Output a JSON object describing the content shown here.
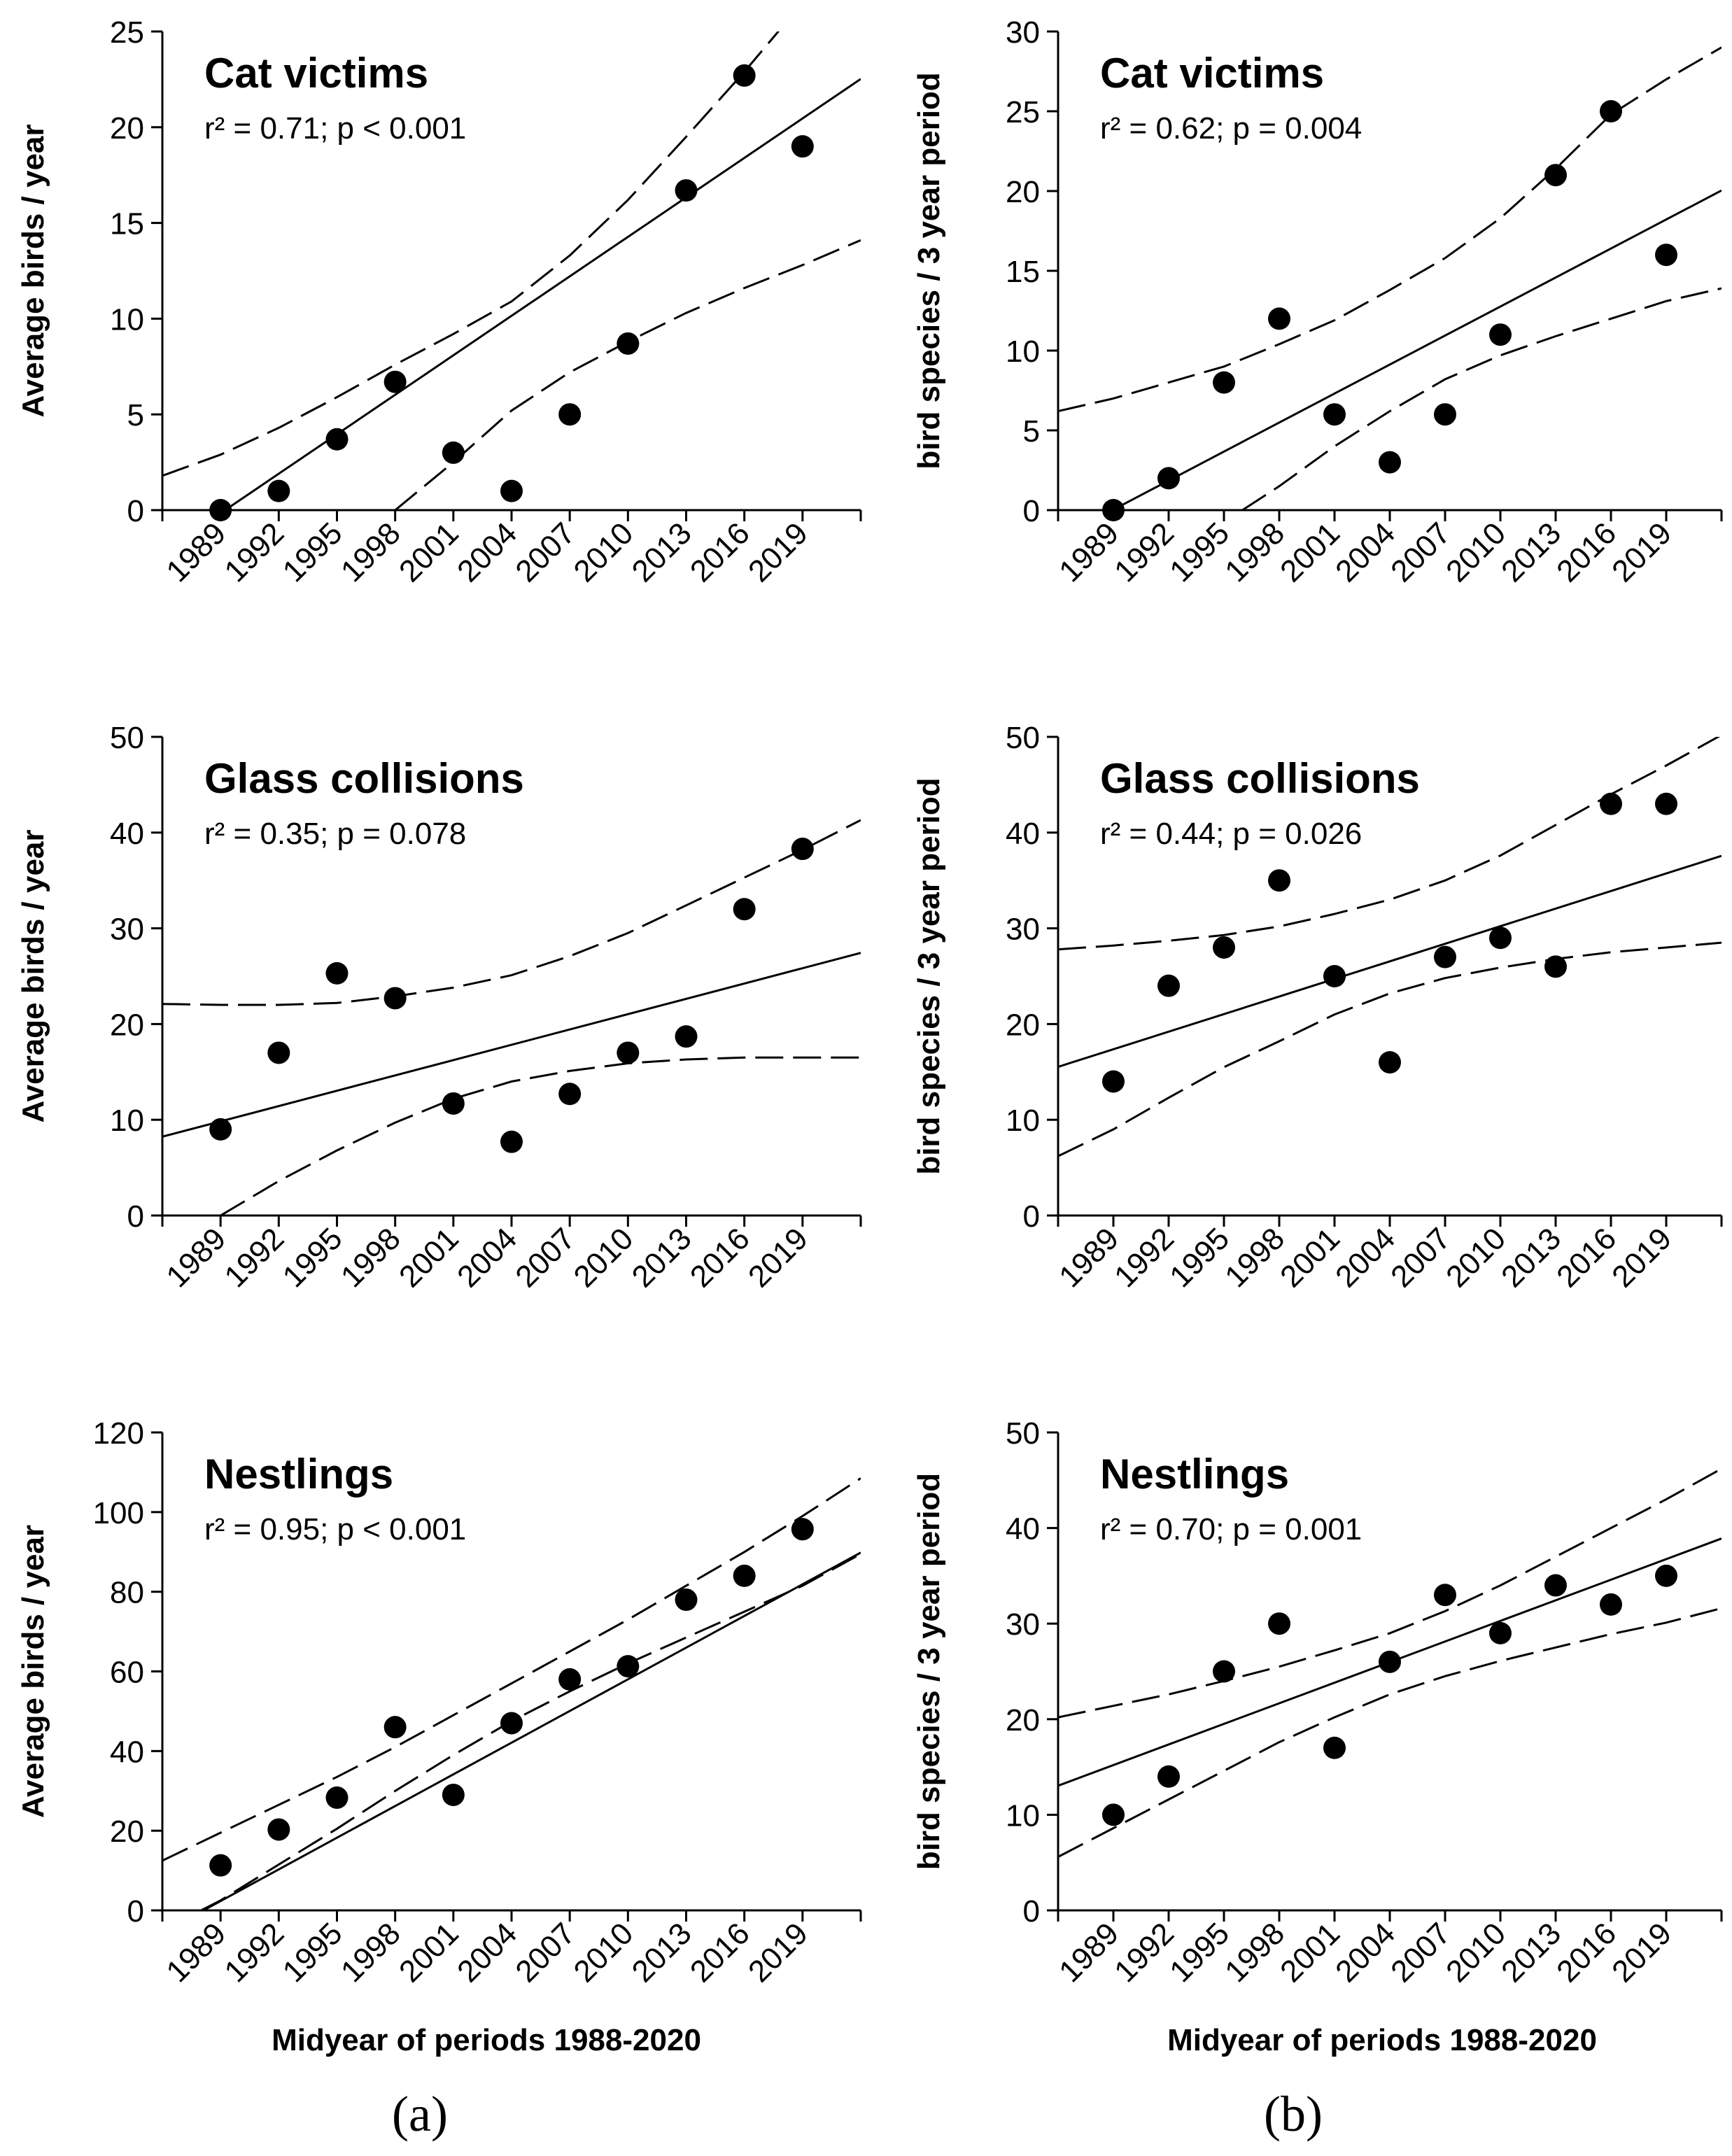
{
  "figure": {
    "panel_labels": [
      "(a)",
      "(b)"
    ],
    "x_axis_label": "Midyear of periods 1988-2020"
  },
  "chart_data": [
    {
      "type": "scatter",
      "title": "Cat victims",
      "stats": "r² = 0.71; p < 0.001",
      "ylabel": "Average birds / year",
      "xlabel": "",
      "categories": [
        "1989",
        "1992",
        "1995",
        "1998",
        "2001",
        "2004",
        "2007",
        "2010",
        "2013",
        "2016",
        "2019"
      ],
      "x": [
        1989,
        1992,
        1995,
        1998,
        2001,
        2004,
        2007,
        2010,
        2013,
        2016,
        2019
      ],
      "values": [
        0,
        1,
        3.7,
        6.7,
        3,
        1,
        5,
        8.7,
        16.7,
        22.7,
        19
      ],
      "fit": {
        "slope": 0.6873,
        "intercept": -1367.2
      },
      "band_lower": [
        [
          1998,
          0
        ],
        [
          2001,
          2.5
        ],
        [
          2004,
          5.2
        ],
        [
          2007,
          7.2
        ],
        [
          2010,
          8.8
        ],
        [
          2013,
          10.3
        ],
        [
          2016,
          11.6
        ],
        [
          2019,
          12.8
        ],
        [
          2022,
          14.1
        ]
      ],
      "band_upper": [
        [
          1986,
          1.8
        ],
        [
          1989,
          2.9
        ],
        [
          1992,
          4.3
        ],
        [
          1995,
          5.9
        ],
        [
          1998,
          7.6
        ],
        [
          2001,
          9.2
        ],
        [
          2004,
          10.9
        ],
        [
          2007,
          13.3
        ],
        [
          2010,
          16.2
        ],
        [
          2013,
          19.5
        ],
        [
          2016,
          22.9
        ],
        [
          2019,
          26.5
        ],
        [
          2022,
          29
        ]
      ],
      "ylim": [
        0,
        25
      ],
      "yticks": [
        0,
        5,
        10,
        15,
        20,
        25
      ],
      "xlim": [
        1986,
        2022
      ],
      "grid": false
    },
    {
      "type": "scatter",
      "title": "Cat victims",
      "stats": "r² = 0.62; p = 0.004",
      "ylabel": "bird species / 3 year period",
      "xlabel": "",
      "categories": [
        "1989",
        "1992",
        "1995",
        "1998",
        "2001",
        "2004",
        "2007",
        "2010",
        "2013",
        "2016",
        "2019"
      ],
      "x": [
        1989,
        1992,
        1995,
        1998,
        2001,
        2004,
        2007,
        2010,
        2013,
        2016,
        2019
      ],
      "values": [
        0,
        2,
        8,
        12,
        6,
        3,
        6,
        11,
        21,
        25,
        16
      ],
      "fit": {
        "slope": 0.6061,
        "intercept": -1205.5
      },
      "band_lower": [
        [
          1996,
          0
        ],
        [
          1998,
          1.5
        ],
        [
          2001,
          4.0
        ],
        [
          2004,
          6.2
        ],
        [
          2007,
          8.2
        ],
        [
          2010,
          9.7
        ],
        [
          2013,
          10.9
        ],
        [
          2016,
          12.0
        ],
        [
          2019,
          13.1
        ],
        [
          2022,
          13.9
        ]
      ],
      "band_upper": [
        [
          1986,
          6.2
        ],
        [
          1989,
          7.0
        ],
        [
          1992,
          8.0
        ],
        [
          1995,
          9.0
        ],
        [
          1998,
          10.4
        ],
        [
          2001,
          11.9
        ],
        [
          2004,
          13.8
        ],
        [
          2007,
          15.8
        ],
        [
          2010,
          18.3
        ],
        [
          2013,
          21.4
        ],
        [
          2016,
          24.8
        ],
        [
          2019,
          27.0
        ],
        [
          2022,
          29
        ]
      ],
      "ylim": [
        0,
        30
      ],
      "yticks": [
        0,
        5,
        10,
        15,
        20,
        25,
        30
      ],
      "xlim": [
        1986,
        2022
      ],
      "grid": false
    },
    {
      "type": "scatter",
      "title": "Glass collisions",
      "stats": "r² = 0.35; p = 0.078",
      "ylabel": "Average birds / year",
      "xlabel": "",
      "categories": [
        "1989",
        "1992",
        "1995",
        "1998",
        "2001",
        "2004",
        "2007",
        "2010",
        "2013",
        "2016",
        "2019"
      ],
      "x": [
        1989,
        1992,
        1995,
        1998,
        2001,
        2004,
        2007,
        2010,
        2013,
        2016,
        2019
      ],
      "values": [
        9,
        17,
        25.3,
        22.7,
        11.7,
        7.7,
        12.7,
        17,
        18.7,
        32,
        38.3
      ],
      "fit": {
        "slope": 0.5333,
        "intercept": -1050.9
      },
      "band_lower": [
        [
          1989,
          0
        ],
        [
          1992,
          3.6
        ],
        [
          1995,
          6.8
        ],
        [
          1998,
          9.7
        ],
        [
          2001,
          12.2
        ],
        [
          2004,
          14.0
        ],
        [
          2007,
          15.1
        ],
        [
          2010,
          15.9
        ],
        [
          2013,
          16.3
        ],
        [
          2016,
          16.5
        ],
        [
          2019,
          16.5
        ],
        [
          2022,
          16.5
        ]
      ],
      "band_upper": [
        [
          1986,
          22.1
        ],
        [
          1989,
          22
        ],
        [
          1992,
          22
        ],
        [
          1995,
          22.2
        ],
        [
          1998,
          22.9
        ],
        [
          2001,
          23.8
        ],
        [
          2004,
          25.1
        ],
        [
          2007,
          27.1
        ],
        [
          2010,
          29.5
        ],
        [
          2013,
          32.4
        ],
        [
          2016,
          35.3
        ],
        [
          2019,
          38.2
        ],
        [
          2022,
          41.3
        ]
      ],
      "ylim": [
        0,
        50
      ],
      "yticks": [
        0,
        10,
        20,
        30,
        40,
        50
      ],
      "xlim": [
        1986,
        2022
      ],
      "grid": false
    },
    {
      "type": "scatter",
      "title": "Glass collisions",
      "stats": "r² = 0.44; p = 0.026",
      "ylabel": "bird species / 3 year period",
      "xlabel": "",
      "categories": [
        "1989",
        "1992",
        "1995",
        "1998",
        "2001",
        "2004",
        "2007",
        "2010",
        "2013",
        "2016",
        "2019"
      ],
      "x": [
        1989,
        1992,
        1995,
        1998,
        2001,
        2004,
        2007,
        2010,
        2013,
        2016,
        2019
      ],
      "values": [
        14,
        24,
        28,
        35,
        25,
        16,
        27,
        29,
        26,
        43,
        43
      ],
      "fit": {
        "slope": 0.6121,
        "intercept": -1200.1
      },
      "band_lower": [
        [
          1986,
          6.2
        ],
        [
          1989,
          9.0
        ],
        [
          1992,
          12.3
        ],
        [
          1995,
          15.5
        ],
        [
          1998,
          18.2
        ],
        [
          2001,
          21.0
        ],
        [
          2004,
          23.2
        ],
        [
          2007,
          24.8
        ],
        [
          2010,
          25.9
        ],
        [
          2013,
          26.8
        ],
        [
          2016,
          27.5
        ],
        [
          2019,
          28.0
        ],
        [
          2022,
          28.5
        ]
      ],
      "band_upper": [
        [
          1986,
          27.8
        ],
        [
          1989,
          28.2
        ],
        [
          1992,
          28.7
        ],
        [
          1995,
          29.3
        ],
        [
          1998,
          30.2
        ],
        [
          2001,
          31.5
        ],
        [
          2004,
          33.0
        ],
        [
          2007,
          35.0
        ],
        [
          2010,
          37.6
        ],
        [
          2013,
          40.8
        ],
        [
          2016,
          44.0
        ],
        [
          2019,
          47.0
        ],
        [
          2022,
          50.2
        ]
      ],
      "ylim": [
        0,
        50
      ],
      "yticks": [
        0,
        10,
        20,
        30,
        40,
        50
      ],
      "xlim": [
        1986,
        2022
      ],
      "grid": false
    },
    {
      "type": "scatter",
      "title": "Nestlings",
      "stats": "r² = 0.95; p < 0.001",
      "ylabel": "Average birds / year",
      "xlabel": "Midyear of periods 1988-2020",
      "categories": [
        "1989",
        "1992",
        "1995",
        "1998",
        "2001",
        "2004",
        "2007",
        "2010",
        "2013",
        "2016",
        "2019"
      ],
      "x": [
        1989,
        1992,
        1995,
        1998,
        2001,
        2004,
        2007,
        2010,
        2013,
        2016,
        2019
      ],
      "values": [
        11.3,
        20.3,
        28.3,
        46,
        29,
        47,
        58,
        61.3,
        78,
        84,
        95.7
      ],
      "fit": {
        "slope": 2.6512,
        "intercept": -5270.9
      },
      "band_lower": [
        [
          1988,
          0
        ],
        [
          1989,
          2.5
        ],
        [
          1992,
          11.5
        ],
        [
          1995,
          20.5
        ],
        [
          1998,
          30
        ],
        [
          2001,
          39
        ],
        [
          2004,
          47.5
        ],
        [
          2007,
          55
        ],
        [
          2010,
          62
        ],
        [
          2013,
          68.5
        ],
        [
          2016,
          75
        ],
        [
          2019,
          81.5
        ],
        [
          2022,
          89.5
        ]
      ],
      "band_upper": [
        [
          1986,
          12.5
        ],
        [
          1989,
          19.5
        ],
        [
          1992,
          26.5
        ],
        [
          1995,
          33.5
        ],
        [
          1998,
          41
        ],
        [
          2001,
          49
        ],
        [
          2004,
          57
        ],
        [
          2007,
          65
        ],
        [
          2010,
          73
        ],
        [
          2013,
          81.5
        ],
        [
          2016,
          90
        ],
        [
          2019,
          99
        ],
        [
          2022,
          108.5
        ]
      ],
      "ylim": [
        0,
        120
      ],
      "yticks": [
        0,
        20,
        40,
        60,
        80,
        100,
        120
      ],
      "xlim": [
        1986,
        2022
      ],
      "grid": false
    },
    {
      "type": "scatter",
      "title": "Nestlings",
      "stats": "r² = 0.70; p = 0.001",
      "ylabel": "bird species / 3 year period",
      "xlabel": "Midyear of periods 1988-2020",
      "categories": [
        "1989",
        "1992",
        "1995",
        "1998",
        "2001",
        "2004",
        "2007",
        "2010",
        "2013",
        "2016",
        "2019"
      ],
      "x": [
        1989,
        1992,
        1995,
        1998,
        2001,
        2004,
        2007,
        2010,
        2013,
        2016,
        2019
      ],
      "values": [
        10,
        14,
        25,
        30,
        17,
        26,
        33,
        29,
        34,
        32,
        35
      ],
      "fit": {
        "slope": 0.7183,
        "intercept": -1413.5
      },
      "band_lower": [
        [
          1986,
          5.6
        ],
        [
          1989,
          8.6
        ],
        [
          1992,
          11.6
        ],
        [
          1995,
          14.6
        ],
        [
          1998,
          17.6
        ],
        [
          2001,
          20.2
        ],
        [
          2004,
          22.6
        ],
        [
          2007,
          24.5
        ],
        [
          2010,
          26.1
        ],
        [
          2013,
          27.5
        ],
        [
          2016,
          28.9
        ],
        [
          2019,
          30.1
        ],
        [
          2022,
          31.6
        ]
      ],
      "band_upper": [
        [
          1986,
          20.2
        ],
        [
          1989,
          21.4
        ],
        [
          1992,
          22.6
        ],
        [
          1995,
          24.0
        ],
        [
          1998,
          25.5
        ],
        [
          2001,
          27.2
        ],
        [
          2004,
          29.0
        ],
        [
          2007,
          31.3
        ],
        [
          2010,
          34.0
        ],
        [
          2013,
          37.0
        ],
        [
          2016,
          40.0
        ],
        [
          2019,
          43.0
        ],
        [
          2022,
          46.2
        ]
      ],
      "ylim": [
        0,
        50
      ],
      "yticks": [
        0,
        10,
        20,
        30,
        40,
        50
      ],
      "xlim": [
        1986,
        2022
      ],
      "grid": false
    }
  ]
}
